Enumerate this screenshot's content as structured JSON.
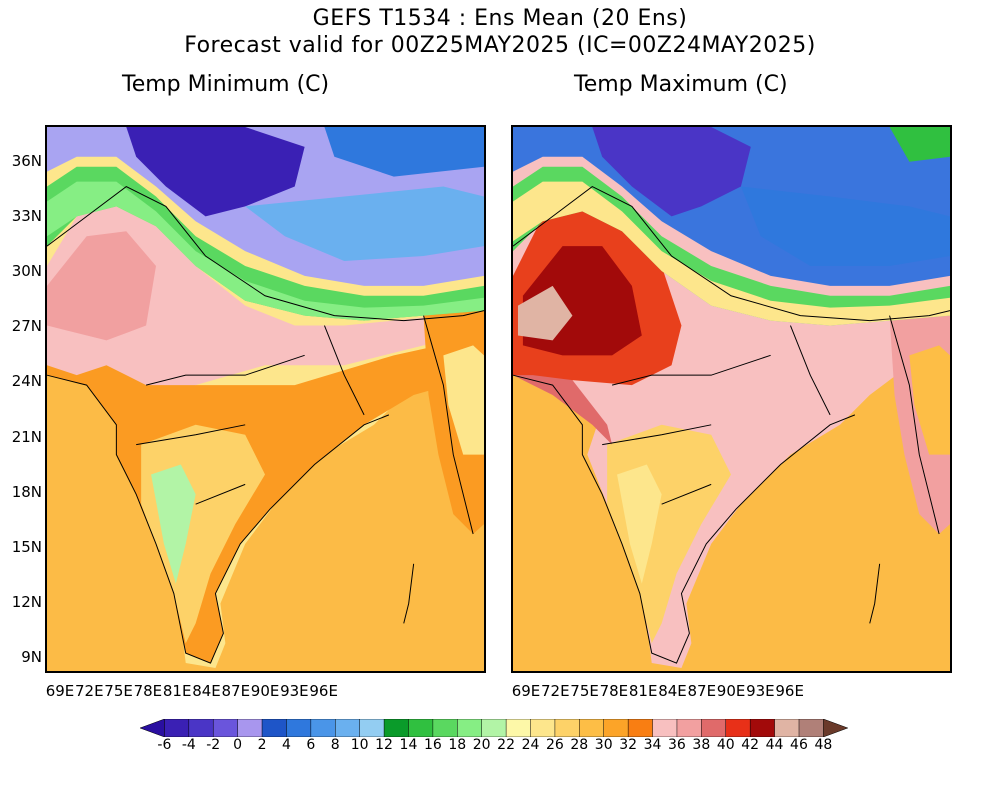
{
  "header": {
    "title_line1": "GEFS T1534 : Ens Mean (20 Ens)",
    "title_line2": "Forecast valid for 00Z25MAY2025 (IC=00Z24MAY2025)"
  },
  "panels": [
    {
      "id": "left",
      "title": "Temp Minimum (C)"
    },
    {
      "id": "right",
      "title": "Temp Maximum (C)"
    }
  ],
  "axes": {
    "lat_labels": [
      "36N",
      "33N",
      "30N",
      "27N",
      "24N",
      "21N",
      "18N",
      "15N",
      "12N",
      "9N"
    ],
    "lon_labels": [
      "69E",
      "72E",
      "75E",
      "78E",
      "81E",
      "84E",
      "87E",
      "90E",
      "93E",
      "96E"
    ]
  },
  "colorbar": {
    "labels": [
      "-6",
      "-4",
      "-2",
      "0",
      "2",
      "4",
      "6",
      "8",
      "10",
      "12",
      "14",
      "16",
      "18",
      "20",
      "22",
      "24",
      "26",
      "28",
      "30",
      "32",
      "34",
      "36",
      "38",
      "40",
      "42",
      "44",
      "46",
      "48"
    ],
    "colors": [
      "#2a0fa0",
      "#3a20b4",
      "#4a35c6",
      "#6a55dc",
      "#a896ee",
      "#1e55c8",
      "#2f78dd",
      "#4a95e8",
      "#6ab0ef",
      "#93cdf2",
      "#0a9b2a",
      "#30c040",
      "#5ad860",
      "#86ee84",
      "#b2f4a6",
      "#fdf8a8",
      "#fde68c",
      "#fdd268",
      "#fdbe46",
      "#fca428",
      "#f97e12",
      "#f8c0c0",
      "#f2a0a0",
      "#e06a6a",
      "#e83018",
      "#a20a0a",
      "#e0b4a4",
      "#b08078",
      "#6a3a2a"
    ]
  },
  "legend_colors": {
    "ocean": "#fcbb46",
    "tibet_min": "#a9a4f2",
    "tibet_max": "#3a75dd",
    "plains_min": "#f1a0a0",
    "plains_max": "#e8401c",
    "peninsula": "#fdd268"
  }
}
